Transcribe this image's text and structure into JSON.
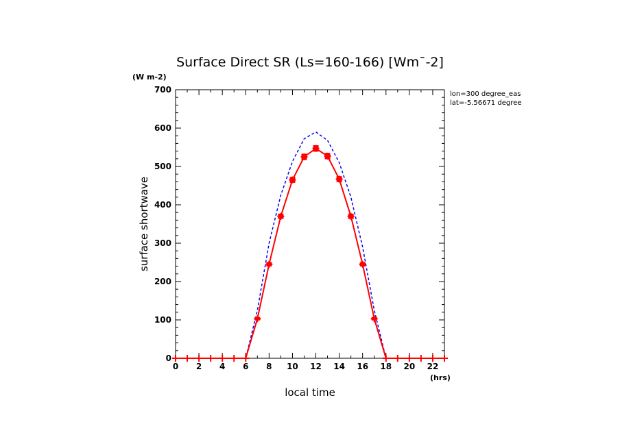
{
  "chart_data": {
    "type": "line",
    "title": "Surface Direct SR (Ls=160-166) [Wm¯-2]",
    "ylabel": "surface shortwave",
    "xlabel": "local time",
    "y_unit": "(W m-2)",
    "x_unit": "(hrs)",
    "annotations": [
      "lon=300 degree_eas",
      "lat=-5.56671 degree"
    ],
    "xlim": [
      0,
      23
    ],
    "ylim": [
      0,
      700
    ],
    "x_ticks": [
      0,
      2,
      4,
      6,
      8,
      10,
      12,
      14,
      16,
      18,
      20,
      22
    ],
    "y_ticks": [
      0,
      100,
      200,
      300,
      400,
      500,
      600,
      700
    ],
    "grid": false,
    "series": [
      {
        "color": "#ff0000",
        "style": "solid-with-error-markers",
        "x": [
          0,
          1,
          2,
          3,
          4,
          5,
          6,
          7,
          8,
          9,
          10,
          11,
          12,
          13,
          14,
          15,
          16,
          17,
          18,
          19,
          20,
          21,
          22,
          23
        ],
        "values": [
          0,
          0,
          0,
          0,
          0,
          0,
          0,
          103,
          245,
          370,
          465,
          525,
          547,
          527,
          467,
          370,
          245,
          103,
          0,
          0,
          0,
          0,
          0,
          0
        ]
      },
      {
        "color": "#0000ff",
        "style": "dashed",
        "x": [
          0,
          1,
          2,
          3,
          4,
          5,
          6,
          7,
          8,
          9,
          10,
          11,
          12,
          13,
          14,
          15,
          16,
          17,
          18,
          19,
          20,
          21,
          22,
          23
        ],
        "values": [
          0,
          0,
          0,
          0,
          0,
          0,
          0,
          125,
          300,
          425,
          513,
          572,
          590,
          568,
          510,
          420,
          290,
          125,
          0,
          0,
          0,
          0,
          0,
          0
        ]
      }
    ]
  }
}
